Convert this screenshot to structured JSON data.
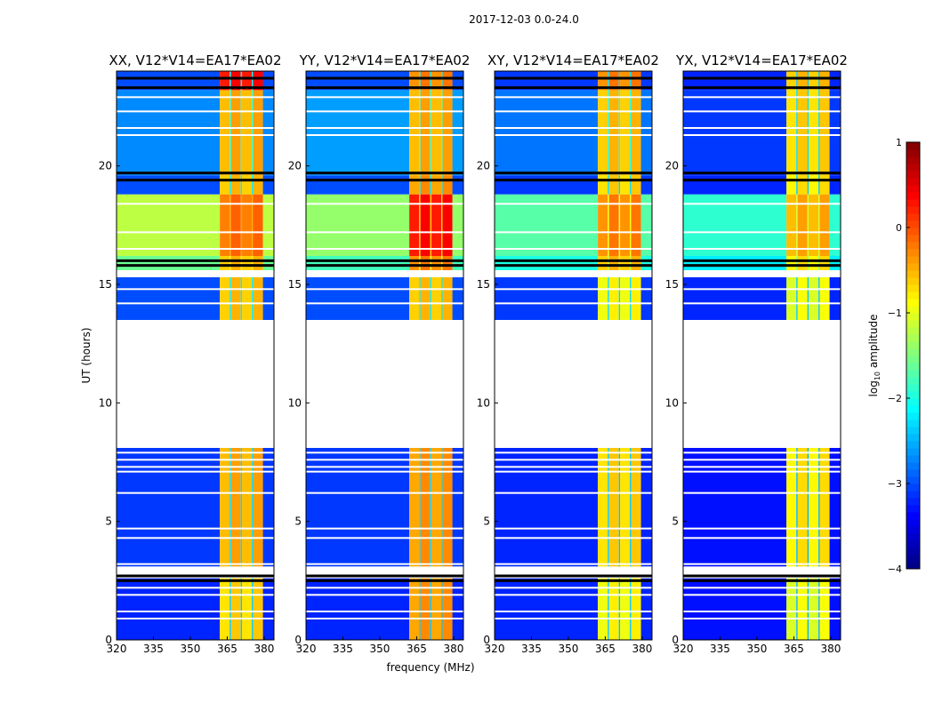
{
  "chart_data": {
    "type": "heatmap",
    "suptitle": "2017-12-03 0.0-24.0",
    "xlabel": "frequency (MHz)",
    "ylabel": "UT (hours)",
    "xlim": [
      320,
      384
    ],
    "ylim": [
      0,
      24
    ],
    "xticks": [
      "320",
      "335",
      "350",
      "365",
      "380"
    ],
    "xtick_values": [
      320,
      335,
      350,
      365,
      380
    ],
    "yticks": [
      "0",
      "5",
      "10",
      "15",
      "20"
    ],
    "ytick_values": [
      0,
      5,
      10,
      15,
      20
    ],
    "colorbar": {
      "label": "log10 amplitude",
      "label_main": "log",
      "label_sub": "10",
      "label_rest": " amplitude",
      "range": [
        -4,
        1
      ],
      "ticks": [
        "1",
        "0",
        "−1",
        "−2",
        "−3",
        "−4"
      ],
      "tick_values": [
        1,
        0,
        -1,
        -2,
        -3,
        -4
      ],
      "colormap": "jet"
    },
    "hot_channels_mhz": [
      [
        362,
        366
      ],
      [
        366.5,
        370.5
      ],
      [
        371,
        375
      ],
      [
        375.5,
        379.5
      ]
    ],
    "flagged_gaps_hours": [
      [
        8.1,
        13.5
      ],
      [
        15.3,
        15.6
      ]
    ],
    "white_lines_hours": [
      0.9,
      1.2,
      1.9,
      2.2,
      3.0,
      3.2,
      4.3,
      4.7,
      6.2,
      7.1,
      7.3,
      7.6,
      7.9,
      14.2,
      14.8,
      16.5,
      17.2,
      18.4,
      21.3,
      21.6,
      22.3,
      22.9
    ],
    "dark_lines_hours": [
      2.5,
      2.7,
      15.8,
      16.0,
      19.4,
      19.7,
      23.3,
      23.7
    ],
    "panels": [
      {
        "title": "XX, V12*V14=EA17*EA02",
        "segments": [
          [
            0,
            2.6,
            -3.2,
            -0.7
          ],
          [
            3.1,
            8.1,
            -3.1,
            -0.5
          ],
          [
            13.5,
            15.3,
            -3.0,
            -0.6
          ],
          [
            15.6,
            16.2,
            -1.6,
            -0.6
          ],
          [
            16.2,
            18.8,
            -1.2,
            -0.2
          ],
          [
            18.8,
            19.6,
            -3.0,
            -0.6
          ],
          [
            19.6,
            23.2,
            -2.7,
            -0.5
          ],
          [
            23.2,
            24,
            -3.0,
            0.3
          ]
        ]
      },
      {
        "title": "YY, V12*V14=EA17*EA02",
        "segments": [
          [
            0,
            2.6,
            -3.2,
            -0.4
          ],
          [
            3.1,
            8.1,
            -3.1,
            -0.4
          ],
          [
            13.5,
            15.3,
            -3.0,
            -0.6
          ],
          [
            15.6,
            16.2,
            -1.8,
            -0.3
          ],
          [
            16.2,
            18.8,
            -1.4,
            0.3
          ],
          [
            18.8,
            19.6,
            -3.0,
            -0.4
          ],
          [
            19.6,
            23.2,
            -2.6,
            -0.5
          ],
          [
            23.2,
            24,
            -3.0,
            -0.3
          ]
        ]
      },
      {
        "title": "XY, V12*V14=EA17*EA02",
        "segments": [
          [
            0,
            2.6,
            -3.2,
            -0.9
          ],
          [
            3.1,
            8.1,
            -3.2,
            -0.7
          ],
          [
            13.5,
            15.3,
            -3.1,
            -0.9
          ],
          [
            15.6,
            16.2,
            -2.0,
            -0.6
          ],
          [
            16.2,
            18.8,
            -1.7,
            -0.3
          ],
          [
            18.8,
            19.6,
            -3.1,
            -0.7
          ],
          [
            19.6,
            23.2,
            -2.8,
            -0.6
          ],
          [
            23.2,
            24,
            -3.1,
            -0.3
          ]
        ]
      },
      {
        "title": "YX, V12*V14=EA17*EA02",
        "segments": [
          [
            0,
            2.6,
            -3.3,
            -1.0
          ],
          [
            3.1,
            8.1,
            -3.3,
            -0.8
          ],
          [
            13.5,
            15.3,
            -3.2,
            -1.0
          ],
          [
            15.6,
            16.2,
            -2.2,
            -0.8
          ],
          [
            16.2,
            18.8,
            -1.9,
            -0.5
          ],
          [
            18.8,
            19.6,
            -3.2,
            -0.8
          ],
          [
            19.6,
            23.2,
            -3.1,
            -0.7
          ],
          [
            23.2,
            24,
            -3.2,
            -0.6
          ]
        ]
      }
    ],
    "segment_fields": [
      "t_start_h",
      "t_end_h",
      "background_log_amp",
      "hot_channel_log_amp"
    ]
  }
}
